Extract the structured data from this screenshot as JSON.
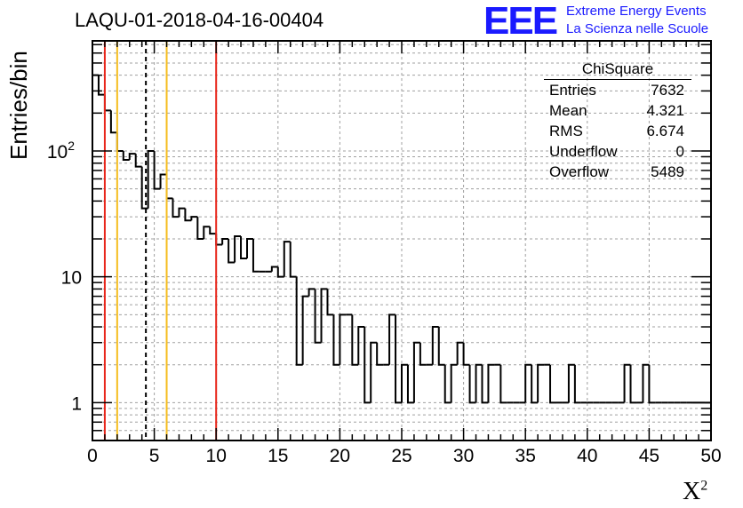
{
  "header": {
    "title": "LAQU-01-2018-04-16-00404",
    "logo_text": "EEE",
    "logo_line1": "Extreme Energy Events",
    "logo_line2": "La Scienza nelle Scuole"
  },
  "stats": {
    "title": "ChiSquare",
    "rows": [
      {
        "label": "Entries",
        "value": "7632"
      },
      {
        "label": "Mean",
        "value": "4.321"
      },
      {
        "label": "RMS",
        "value": "6.674"
      },
      {
        "label": "Underflow",
        "value": "0"
      },
      {
        "label": "Overflow",
        "value": "5489"
      }
    ]
  },
  "colors": {
    "red": "#e8261b",
    "orange": "#f5bd1f",
    "grid": "#a0a0a0",
    "line": "#000000"
  },
  "chart_data": {
    "type": "histogram",
    "title": "LAQU-01-2018-04-16-00404",
    "xlabel": "X",
    "xlabel_superscript": "2",
    "ylabel": "Entries/bin",
    "yscale": "log",
    "xlim": [
      0,
      50
    ],
    "ylim": [
      0.5,
      750
    ],
    "bin_width": 0.5,
    "xticks": [
      0,
      5,
      10,
      15,
      20,
      25,
      30,
      35,
      40,
      45,
      50
    ],
    "xtick_labels": [
      "0",
      "5",
      "10",
      "15",
      "20",
      "25",
      "30",
      "35",
      "40",
      "45",
      "50"
    ],
    "ytick_labels": [
      {
        "value": 1,
        "label": "1"
      },
      {
        "value": 10,
        "label": "10"
      },
      {
        "value": 100,
        "label": "10",
        "sup": "2"
      }
    ],
    "grid": true,
    "values": [
      400,
      280,
      210,
      140,
      100,
      85,
      95,
      75,
      35,
      100,
      50,
      65,
      42,
      30,
      35,
      28,
      30,
      20,
      25,
      22,
      18,
      20,
      13,
      21,
      14,
      20,
      11,
      11,
      11,
      12,
      10,
      19,
      10,
      2,
      7,
      8,
      3,
      8,
      5,
      2,
      5,
      5,
      2,
      4,
      1,
      3,
      2,
      2,
      5,
      1,
      2,
      1,
      3,
      2,
      2,
      4,
      2,
      1,
      2,
      3,
      2,
      1,
      2,
      1,
      2,
      2,
      1,
      1,
      1,
      1,
      2,
      1,
      2,
      2,
      1,
      1,
      1,
      2,
      1,
      1,
      1,
      1,
      1,
      1,
      1,
      1,
      2,
      1,
      1,
      2,
      1,
      1,
      1,
      1,
      1,
      1,
      1,
      1,
      1,
      1
    ],
    "zero_value_floor": 0.5,
    "vertical_lines": [
      {
        "x": 1,
        "color": "red",
        "style": "solid"
      },
      {
        "x": 2,
        "color": "orange",
        "style": "solid"
      },
      {
        "x": 4.321,
        "color": "black",
        "style": "dashed"
      },
      {
        "x": 6,
        "color": "orange",
        "style": "solid"
      },
      {
        "x": 10,
        "color": "red",
        "style": "solid"
      }
    ]
  }
}
